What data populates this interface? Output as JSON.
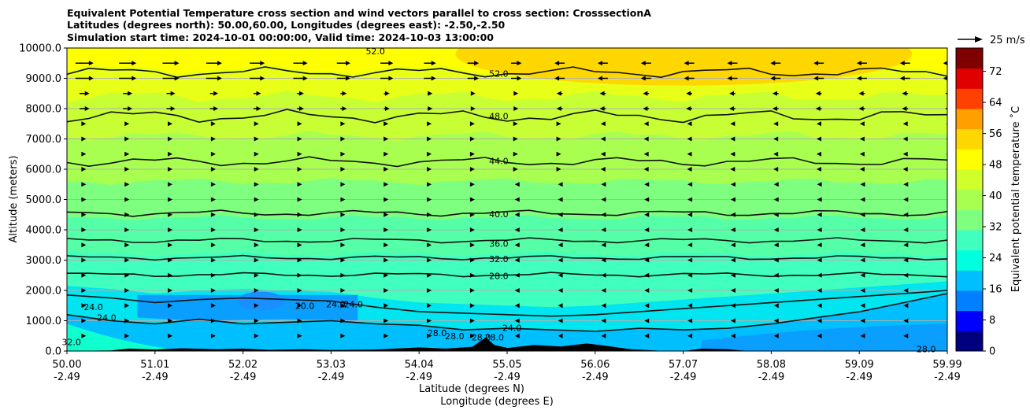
{
  "titles": [
    "Equivalent Potential Temperature cross section and wind vectors parallel to cross section: CrosssectionA",
    "Latitudes (degrees north): 50.00,60.00, Longitudes (degrees east): -2.50,-2.50",
    "Simulation start time: 2024-10-01 00:00:00, Valid time: 2024-10-03 13:00:00"
  ],
  "chart_data": {
    "type": "contour",
    "xlabel": "Latitude (degrees N)",
    "xlabel2": "Longitude (degrees E)",
    "ylabel": "Altitude (meters)",
    "ylim": [
      0,
      10000
    ],
    "y_ticks": [
      "0.0",
      "1000.0",
      "2000.0",
      "3000.0",
      "4000.0",
      "5000.0",
      "6000.0",
      "7000.0",
      "8000.0",
      "9000.0",
      "10000.0"
    ],
    "x_ticks": [
      {
        "lat": "50.00",
        "lon": "-2.49"
      },
      {
        "lat": "51.01",
        "lon": "-2.49"
      },
      {
        "lat": "52.02",
        "lon": "-2.49"
      },
      {
        "lat": "53.03",
        "lon": "-2.49"
      },
      {
        "lat": "54.04",
        "lon": "-2.49"
      },
      {
        "lat": "55.05",
        "lon": "-2.49"
      },
      {
        "lat": "56.06",
        "lon": "-2.49"
      },
      {
        "lat": "57.07",
        "lon": "-2.49"
      },
      {
        "lat": "58.08",
        "lon": "-2.49"
      },
      {
        "lat": "59.09",
        "lon": "-2.49"
      },
      {
        "lat": "59.99",
        "lon": "-2.49"
      }
    ],
    "colorbar": {
      "label": "Equivalent potential temperature ˚C",
      "range": [
        0,
        78
      ],
      "ticks": [
        "0",
        "8",
        "16",
        "24",
        "32",
        "40",
        "48",
        "56",
        "64",
        "72"
      ],
      "colors": [
        "#00007f",
        "#0000ff",
        "#007fff",
        "#00bfff",
        "#00ffdf",
        "#40ffbf",
        "#7fff7f",
        "#a8ff50",
        "#d0ff2c",
        "#ffff00",
        "#ffd700",
        "#ff9f00",
        "#ff4000",
        "#e00000",
        "#7f0000"
      ]
    },
    "wind_reference": "25 m/s",
    "contour_labels": [
      {
        "text": "52.0",
        "lat": 54.9,
        "alt": 9150
      },
      {
        "text": "52.0",
        "lat": 53.5,
        "alt": 9900
      },
      {
        "text": "48.0",
        "lat": 54.9,
        "alt": 7750
      },
      {
        "text": "44.0",
        "lat": 54.9,
        "alt": 6270
      },
      {
        "text": "40.0",
        "lat": 54.9,
        "alt": 4520
      },
      {
        "text": "36.0",
        "lat": 54.9,
        "alt": 3550
      },
      {
        "text": "32.0",
        "lat": 54.9,
        "alt": 3040
      },
      {
        "text": "28.0",
        "lat": 54.9,
        "alt": 2480
      },
      {
        "text": "24.0",
        "lat": 55.05,
        "alt": 770
      },
      {
        "text": "24.0",
        "lat": 50.3,
        "alt": 1450
      },
      {
        "text": "24.0",
        "lat": 50.45,
        "alt": 1100
      },
      {
        "text": "20.0",
        "lat": 52.7,
        "alt": 1500
      },
      {
        "text": "24.0",
        "lat": 53.05,
        "alt": 1550
      },
      {
        "text": "24.0",
        "lat": 53.25,
        "alt": 1550
      },
      {
        "text": "28.0",
        "lat": 54.2,
        "alt": 600
      },
      {
        "text": "28.0",
        "lat": 54.4,
        "alt": 500
      },
      {
        "text": "28.0",
        "lat": 54.7,
        "alt": 450
      },
      {
        "text": "28.0",
        "lat": 54.85,
        "alt": 450
      },
      {
        "text": "28.0",
        "lat": 59.75,
        "alt": 70
      },
      {
        "text": "32.0",
        "lat": 50.05,
        "alt": 300
      }
    ]
  }
}
